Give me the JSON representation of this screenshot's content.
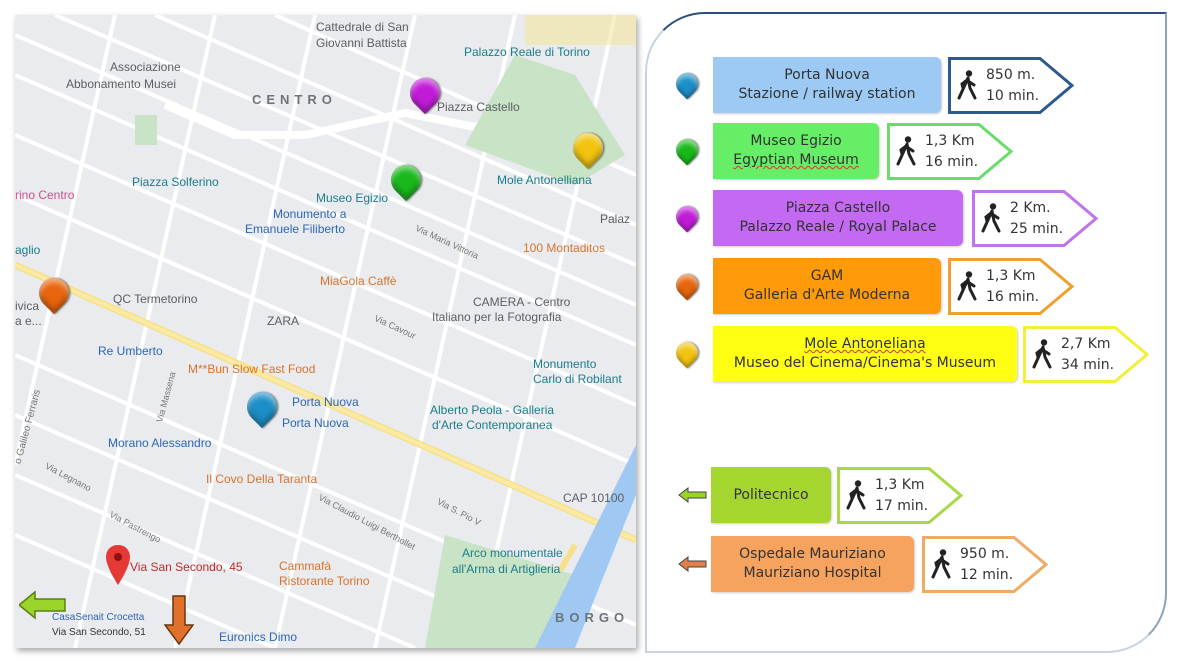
{
  "map": {
    "labels": [
      "Cattedrale di San",
      "Giovanni Battista",
      "Palazzo Reale di Torino",
      "Associazione",
      "Abbonamento Musei",
      "CENTRO",
      "Piazza Castello",
      "Piazza Solferino",
      "Mole Antonelliana",
      "rino Centro",
      "Museo Egizio",
      "Monumento a",
      "Emanuele Filiberto",
      "Palaz",
      "100 Montaditos",
      "aglio",
      "MiaGola Caffè",
      "QC Termetorino",
      "CAMERA - Centro",
      "Italiano per la Fotografia",
      "ZARA",
      "Re Umberto",
      "Monumento",
      "Carlo di Robilant",
      "M**Bun Slow Fast Food",
      "Porta Nuova",
      "Porta Nuova",
      "Alberto Peola - Galleria",
      "d'Arte Contemporanea",
      "Morano Alessandro",
      "Il Covo Della Taranta",
      "CAP 10100",
      "Arco monumentale",
      "all'Arma di Artiglieria",
      "Via San Secondo, 45",
      "Cammafà",
      "Ristorante Torino",
      "CasaSenait Crocetta",
      "Via San Secondo, 51",
      "Euronics Dimo",
      "BORGO",
      "Via Maria Vittoria",
      "Via Cavour",
      "Via Massena",
      "o Galileo Ferraris",
      "Via Legnano",
      "Via Pastrengo",
      "Via Claudio Luigi Berthollet",
      "Via S. Pio V",
      "ivica",
      "a e..."
    ],
    "pins": [
      {
        "name": "piazza-castello",
        "color": "#c21bd8"
      },
      {
        "name": "museo-egizio",
        "color": "#19b91b"
      },
      {
        "name": "mole-antonelliana",
        "color": "#f2c40f"
      },
      {
        "name": "gam",
        "color": "#e8650d"
      },
      {
        "name": "porta-nuova",
        "color": "#1b8fc7"
      }
    ],
    "home_marker_color": "#e53935"
  },
  "legend": {
    "destinations": [
      {
        "line1": "Porta Nuova",
        "line2": "Stazione / railway station",
        "distance": "850 m.",
        "time": "10 min.",
        "color": "#9ccaf4",
        "border": "#2e5b8c",
        "pin": "#1b8fc7"
      },
      {
        "line1": "Museo Egizio",
        "line2": "Egyptian Museum",
        "distance": "1,3 Km",
        "time": "16 min.",
        "color": "#66ee66",
        "border": "#6bdc6b",
        "pin": "#19b91b"
      },
      {
        "line1": "Piazza Castello",
        "line2": "Palazzo Reale / Royal Palace",
        "distance": "2 Km.",
        "time": "25 min.",
        "color": "#c46af2",
        "border": "#bf73ee",
        "pin": "#c21bd8"
      },
      {
        "line1": "GAM",
        "line2": "Galleria d'Arte Moderna",
        "distance": "1,3 Km",
        "time": "16 min.",
        "color": "#ff9a0a",
        "border": "#f0a030",
        "pin": "#e8650d"
      },
      {
        "line1": "Mole Antoneliana",
        "line2": "Museo del Cinema/Cinema's Museum",
        "distance": "2,7 Km",
        "time": "34 min.",
        "color": "#ffff14",
        "border": "#f2ee3a",
        "pin": "#f2c40f"
      }
    ],
    "directions": [
      {
        "line1": "Politecnico",
        "distance": "1,3 Km",
        "time": "17 min.",
        "color": "#a5d52f",
        "border": "#a8d84a",
        "arrow": "#9ad42a"
      },
      {
        "line1": "Ospedale Mauriziano",
        "line2": "Mauriziano  Hospital",
        "distance": "950 m.",
        "time": "12 min.",
        "color": "#f5a35e",
        "border": "#f0aa66",
        "arrow": "#e0804a"
      }
    ]
  }
}
